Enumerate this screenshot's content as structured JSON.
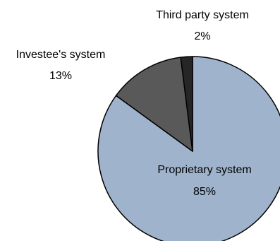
{
  "chart_data": {
    "type": "pie",
    "slices": [
      {
        "label": "Proprietary system",
        "value": 85,
        "value_label": "85%",
        "color": "#9fb3cc"
      },
      {
        "label": "Investee's system",
        "value": 13,
        "value_label": "13%",
        "color": "#595959"
      },
      {
        "label": "Third party system",
        "value": 2,
        "value_label": "2%",
        "color": "#262626"
      }
    ],
    "start_angle_deg": 0,
    "direction": "clockwise",
    "edge_color": "#000000",
    "legend": "none"
  }
}
